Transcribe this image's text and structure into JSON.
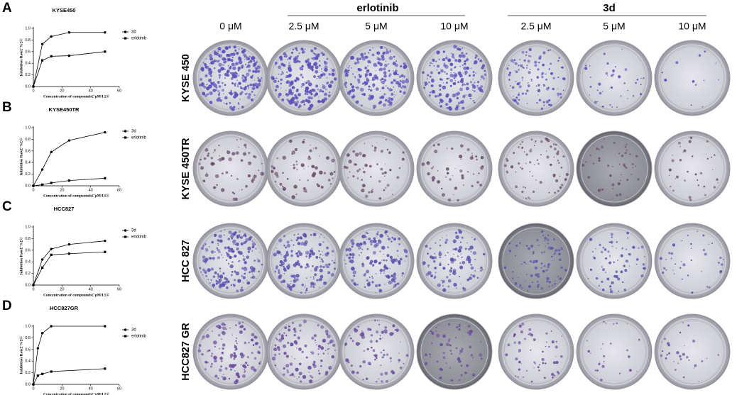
{
  "chart_data": [
    {
      "type": "line",
      "panel_label": "A",
      "title": "KYSE450",
      "x_label": "Concentration of compounds£¨μM/L£©",
      "y_label": "Inhibition Rate£¨%£©",
      "x": [
        0,
        6.25,
        12.5,
        25,
        50
      ],
      "series": [
        {
          "name": "3d",
          "color": "#000000",
          "marker": "circle",
          "values": [
            0,
            0.73,
            0.86,
            0.93,
            0.93
          ]
        },
        {
          "name": "erlotinib",
          "color": "#000000",
          "marker": "square",
          "values": [
            0,
            0.45,
            0.52,
            0.53,
            0.6
          ]
        }
      ],
      "xlim": [
        0,
        60
      ],
      "xticks": [
        0,
        20,
        40,
        60
      ],
      "ylim": [
        0,
        1
      ],
      "yticks": [
        {
          "value": 0,
          "label": "0.0"
        },
        0.2,
        0.4,
        0.6,
        0.8,
        {
          "value": 1,
          "label": "1.0"
        }
      ]
    },
    {
      "type": "line",
      "panel_label": "B",
      "title": "KYSE450TR",
      "x_label": "Concentration of compounds£¨μM/L£©",
      "y_label": "Inhibition Rate£¨%£©",
      "x": [
        0,
        6.25,
        12.5,
        25,
        50
      ],
      "series": [
        {
          "name": "3d",
          "color": "#000000",
          "marker": "circle",
          "values": [
            0,
            0.28,
            0.58,
            0.78,
            0.92
          ]
        },
        {
          "name": "erlotinib",
          "color": "#000000",
          "marker": "square",
          "values": [
            0,
            0.02,
            0.05,
            0.09,
            0.13
          ]
        }
      ],
      "xlim": [
        0,
        60
      ],
      "xticks": [
        0,
        20,
        40,
        60
      ],
      "ylim": [
        0,
        1
      ],
      "yticks": [
        {
          "value": 0,
          "label": "0.0"
        },
        0.2,
        0.4,
        0.6,
        0.8,
        {
          "value": 1,
          "label": "1.0"
        }
      ]
    },
    {
      "type": "line",
      "panel_label": "C",
      "title": "HCC827",
      "x_label": "Concentration of compounds£¨μM/L£©",
      "y_label": "Inhibition Rate£¨%£©",
      "x": [
        0,
        6.25,
        12.5,
        25,
        50
      ],
      "series": [
        {
          "name": "3d",
          "color": "#000000",
          "marker": "circle",
          "values": [
            0,
            0.44,
            0.62,
            0.7,
            0.76
          ]
        },
        {
          "name": "erlotinib",
          "color": "#000000",
          "marker": "square",
          "values": [
            0,
            0.3,
            0.52,
            0.54,
            0.57
          ]
        }
      ],
      "xlim": [
        0,
        60
      ],
      "xticks": [
        0,
        20,
        40,
        60
      ],
      "ylim": [
        0,
        1
      ],
      "yticks": [
        {
          "value": 0,
          "label": "0.0"
        },
        0.2,
        0.4,
        0.6,
        0.8,
        {
          "value": 1,
          "label": "1.0"
        }
      ]
    },
    {
      "type": "line",
      "panel_label": "D",
      "title": "HCC827GR",
      "x_label": "Concentration of compounds£¨μM/L£©",
      "y_label": "Inhibition Rate£¨%£©",
      "x": [
        0,
        3.125,
        6.25,
        12.5,
        50
      ],
      "series": [
        {
          "name": "3d",
          "color": "#000000",
          "marker": "circle",
          "values": [
            0,
            0.62,
            0.88,
            1.0,
            1.0
          ]
        },
        {
          "name": "erlotinib",
          "color": "#000000",
          "marker": "square",
          "values": [
            0,
            0.15,
            0.18,
            0.22,
            0.27
          ]
        }
      ],
      "xlim": [
        0,
        60
      ],
      "xticks": [
        0,
        20,
        40,
        60
      ],
      "ylim": [
        0,
        1
      ],
      "yticks": [
        {
          "value": 0,
          "label": "0.0"
        },
        0.2,
        0.4,
        0.6,
        0.8,
        {
          "value": 1,
          "label": "1.0"
        }
      ]
    }
  ],
  "plates": {
    "groups": [
      "erlotinib",
      "3d"
    ],
    "columns": [
      "0 μM",
      "2.5 μM",
      "5 μM",
      "10 μM",
      "2.5 μM",
      "5 μM",
      "10 μM"
    ],
    "rows": [
      "KYSE 450",
      "KYSE 450TR",
      "HCC 827",
      "HCC827 GR"
    ]
  }
}
